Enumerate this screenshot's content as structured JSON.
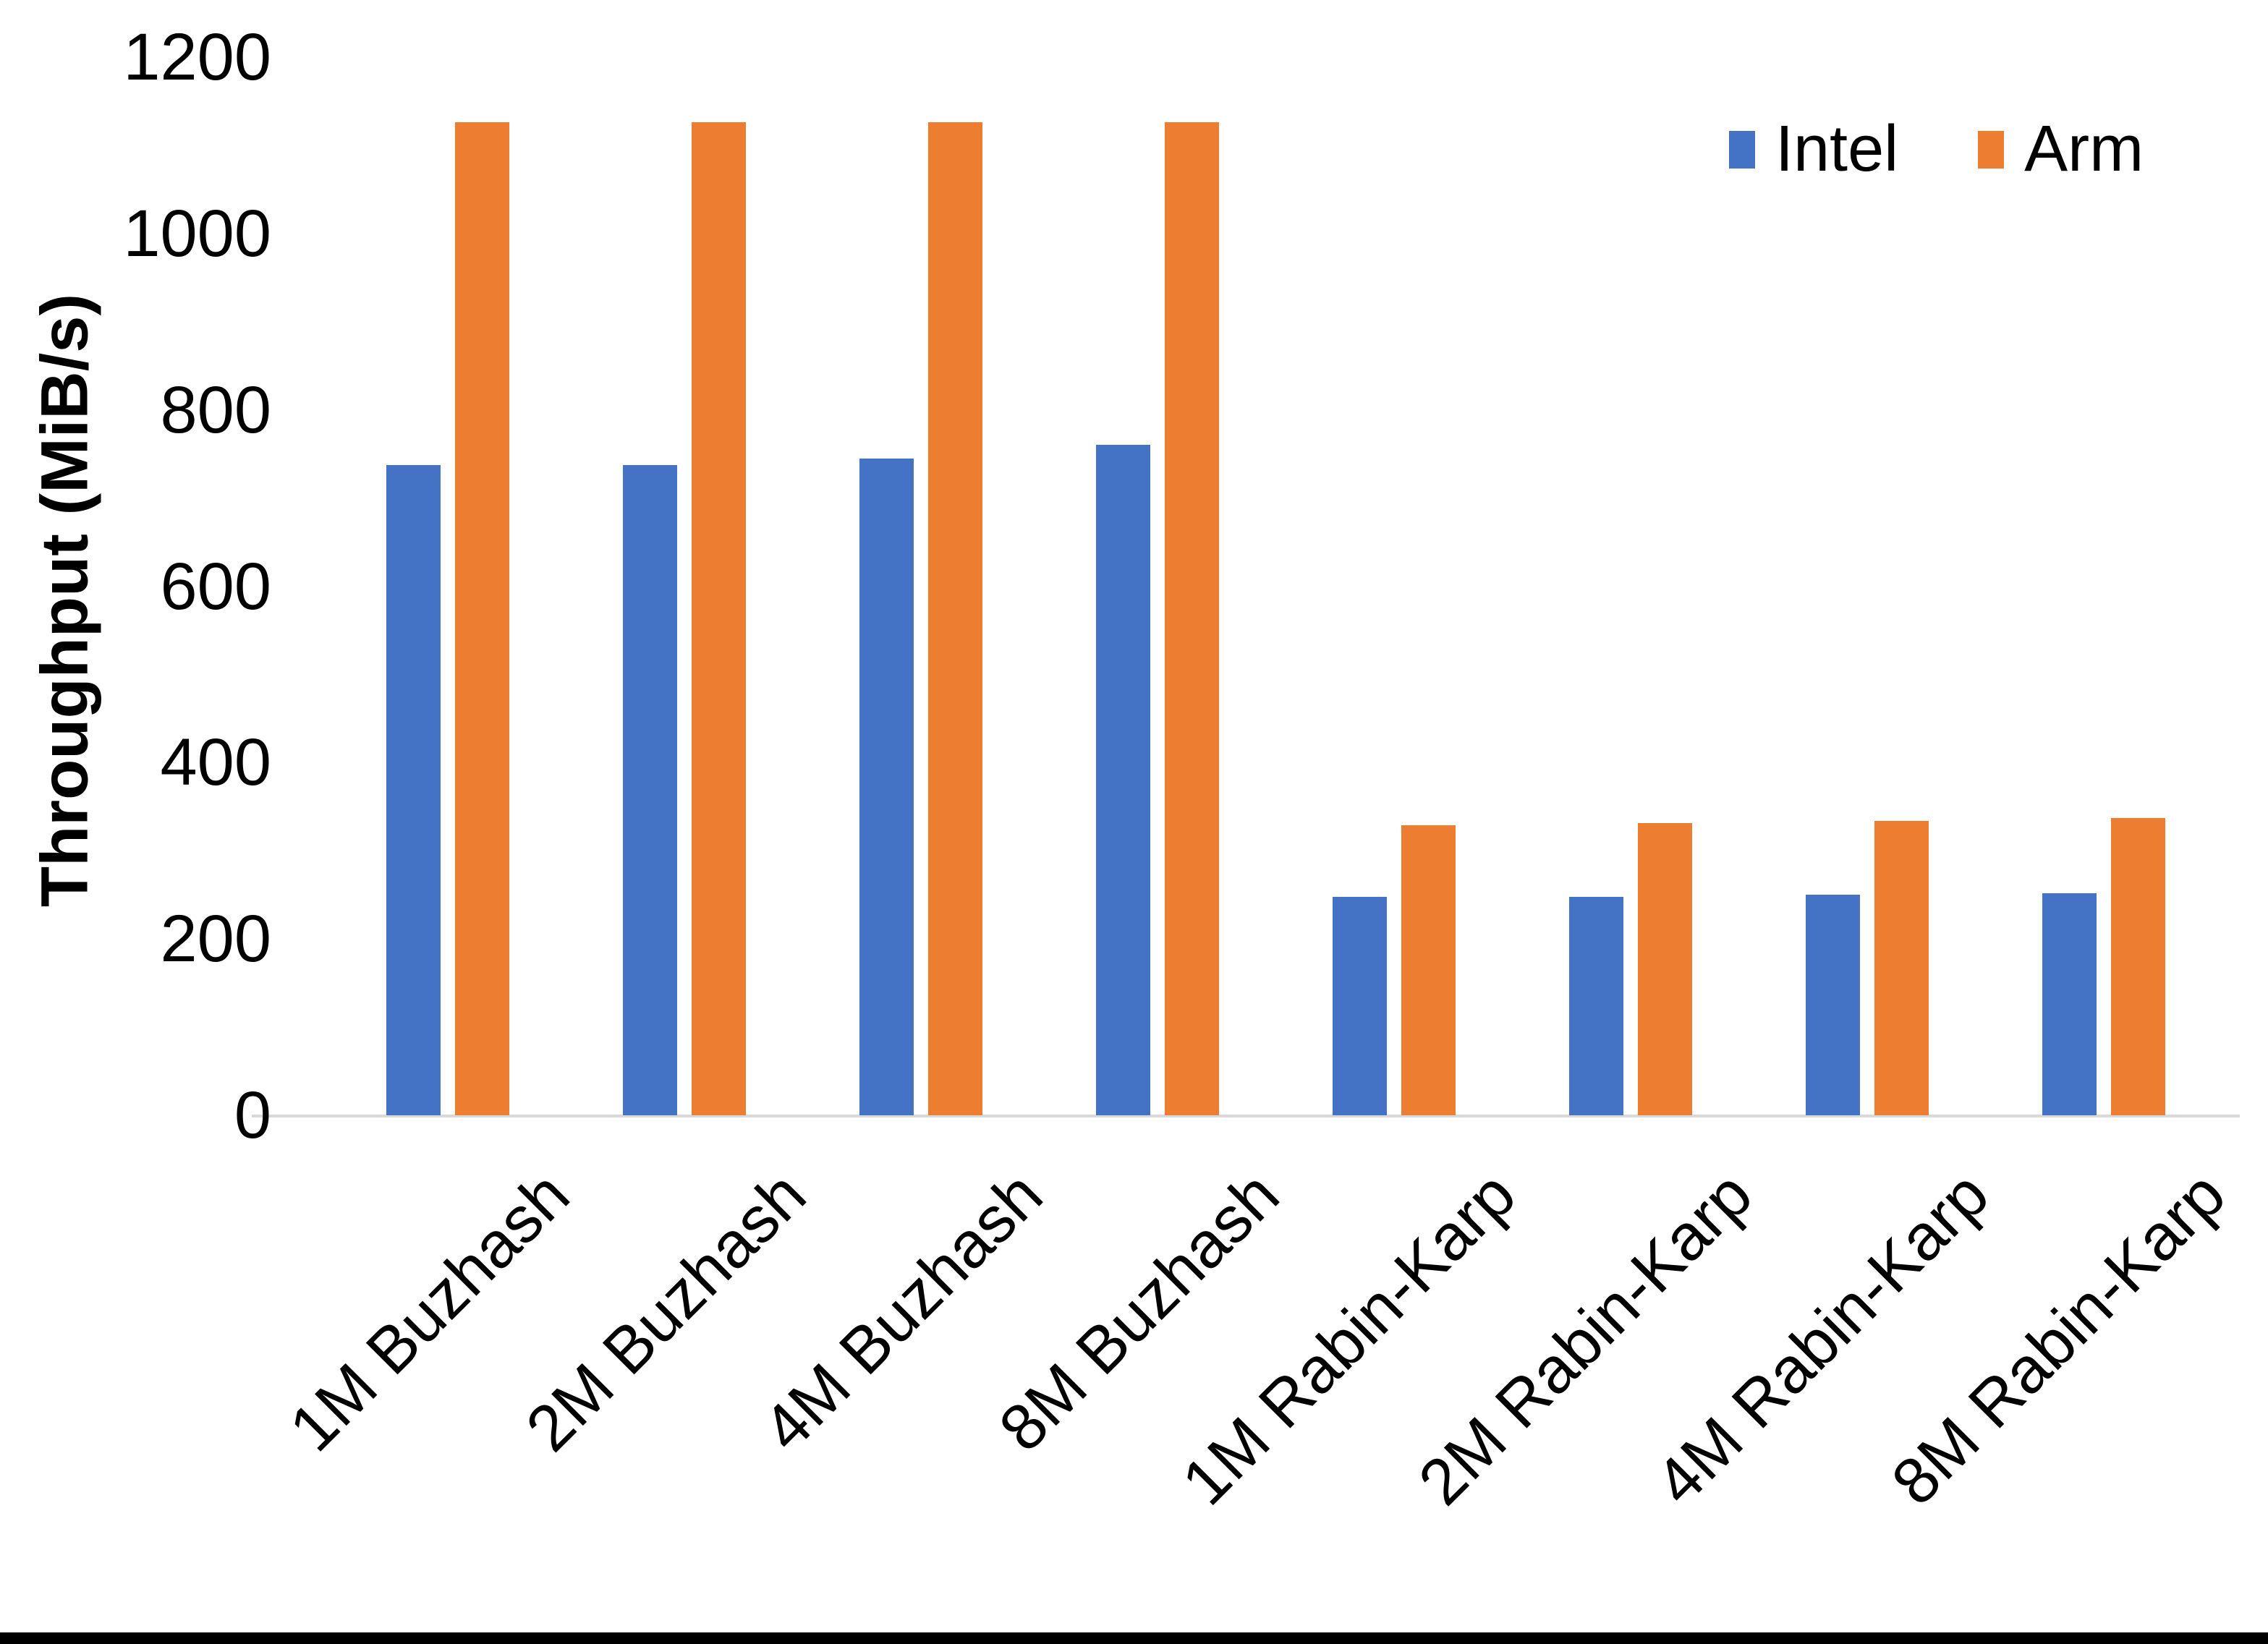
{
  "chart_data": {
    "type": "bar",
    "title": "",
    "xlabel": "",
    "ylabel": "Throughput (MiB/s)",
    "ylim": [
      0,
      1200
    ],
    "yticks": [
      0,
      200,
      400,
      600,
      800,
      1000,
      1200
    ],
    "grid": false,
    "legend_position": "top-right",
    "categories": [
      "1M Buzhash",
      "2M Buzhash",
      "4M Buzhash",
      "8M Buzhash",
      "1M Rabin-Karp",
      "2M Rabin-Karp",
      "4M Rabin-Karp",
      "8M Rabin-Karp"
    ],
    "series": [
      {
        "name": "Intel",
        "color": "#4472C4",
        "values": [
          737,
          737,
          745,
          760,
          248,
          248,
          250,
          252
        ]
      },
      {
        "name": "Arm",
        "color": "#ED7D31",
        "values": [
          1126,
          1126,
          1126,
          1126,
          329,
          331,
          334,
          337
        ]
      }
    ]
  },
  "colors": {
    "axis_line": "#D9D9D9",
    "text": "#000000",
    "background": "#FFFFFF",
    "bottom_border": "#000000"
  }
}
